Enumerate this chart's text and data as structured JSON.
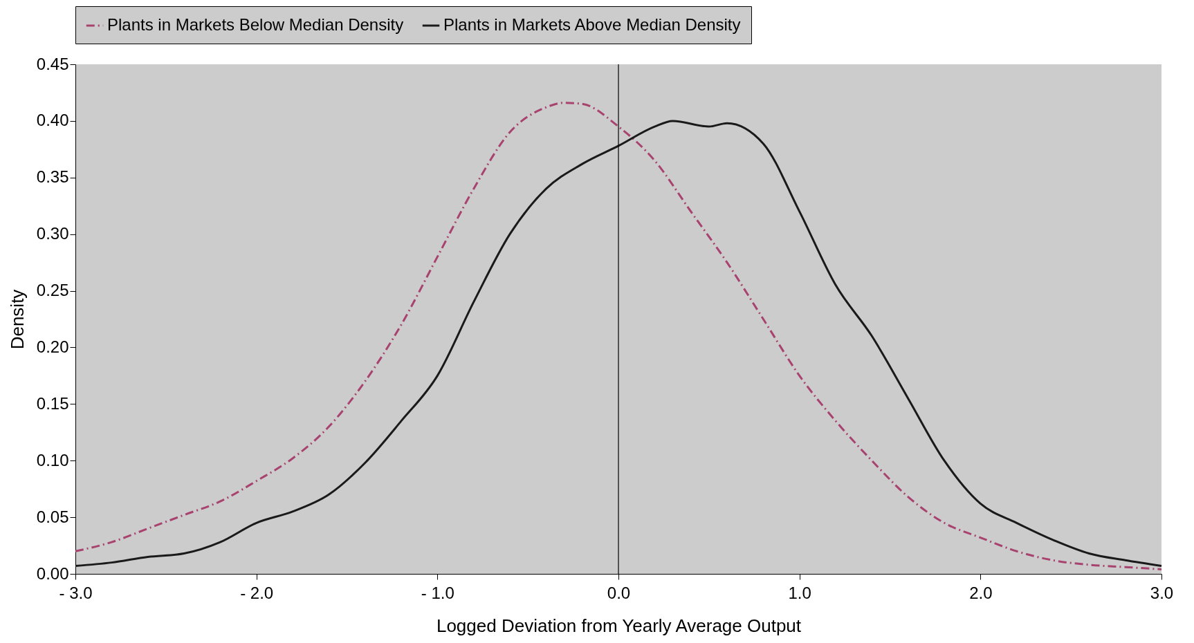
{
  "chart_data": {
    "type": "line",
    "xlabel": "Logged Deviation from Yearly Average Output",
    "ylabel": "Density",
    "xlim": [
      -3,
      3
    ],
    "xticks": [
      {
        "value": -3,
        "label": "- 3.0"
      },
      {
        "value": -2,
        "label": "- 2.0"
      },
      {
        "value": -1,
        "label": "- 1.0"
      },
      {
        "value": 0,
        "label": "0.0"
      },
      {
        "value": 1,
        "label": "1.0"
      },
      {
        "value": 2,
        "label": "2.0"
      },
      {
        "value": 3,
        "label": "3.0"
      }
    ],
    "ylim": [
      0,
      0.45
    ],
    "yticks": [
      {
        "value": 0,
        "label": "0.00"
      },
      {
        "value": 0.05,
        "label": "0.05"
      },
      {
        "value": 0.1,
        "label": "0.10"
      },
      {
        "value": 0.15,
        "label": "0.15"
      },
      {
        "value": 0.2,
        "label": "0.20"
      },
      {
        "value": 0.25,
        "label": "0.25"
      },
      {
        "value": 0.3,
        "label": "0.30"
      },
      {
        "value": 0.35,
        "label": "0.35"
      },
      {
        "value": 0.4,
        "label": "0.40"
      },
      {
        "value": 0.45,
        "label": "0.45"
      }
    ],
    "grid": false,
    "legend": "top",
    "marker": "none",
    "ref_lines": [
      {
        "axis": "x",
        "value": 0,
        "color": "#000000"
      }
    ],
    "series": [
      {
        "name": "Plants in Markets Below Median Density",
        "color": "#a8436f",
        "line_style": "dashed",
        "x": [
          -3,
          -2.8,
          -2.6,
          -2.4,
          -2.2,
          -2,
          -1.8,
          -1.6,
          -1.4,
          -1.2,
          -1,
          -0.8,
          -0.6,
          -0.4,
          -0.3,
          -0.2,
          0,
          0.2,
          0.4,
          0.6,
          0.8,
          1,
          1.2,
          1.4,
          1.6,
          1.8,
          2,
          2.2,
          2.4,
          2.6,
          2.8,
          3
        ],
        "values": [
          0.02,
          0.028,
          0.04,
          0.052,
          0.064,
          0.082,
          0.102,
          0.13,
          0.17,
          0.22,
          0.28,
          0.34,
          0.39,
          0.412,
          0.416,
          0.415,
          0.395,
          0.365,
          0.32,
          0.275,
          0.225,
          0.175,
          0.135,
          0.1,
          0.068,
          0.045,
          0.032,
          0.02,
          0.012,
          0.008,
          0.006,
          0.004
        ]
      },
      {
        "name": "Plants in Markets Above Median Density",
        "color": "#1a1a1a",
        "line_style": "solid",
        "x": [
          -3,
          -2.8,
          -2.6,
          -2.4,
          -2.2,
          -2,
          -1.8,
          -1.6,
          -1.4,
          -1.2,
          -1,
          -0.8,
          -0.6,
          -0.4,
          -0.2,
          0,
          0.2,
          0.3,
          0.5,
          0.6,
          0.8,
          1,
          1.2,
          1.4,
          1.6,
          1.8,
          2,
          2.2,
          2.4,
          2.6,
          2.8,
          3
        ],
        "values": [
          0.007,
          0.01,
          0.015,
          0.018,
          0.028,
          0.045,
          0.055,
          0.07,
          0.098,
          0.135,
          0.175,
          0.24,
          0.3,
          0.34,
          0.362,
          0.378,
          0.395,
          0.4,
          0.395,
          0.398,
          0.38,
          0.32,
          0.255,
          0.21,
          0.155,
          0.1,
          0.062,
          0.045,
          0.03,
          0.018,
          0.012,
          0.007
        ]
      }
    ]
  }
}
